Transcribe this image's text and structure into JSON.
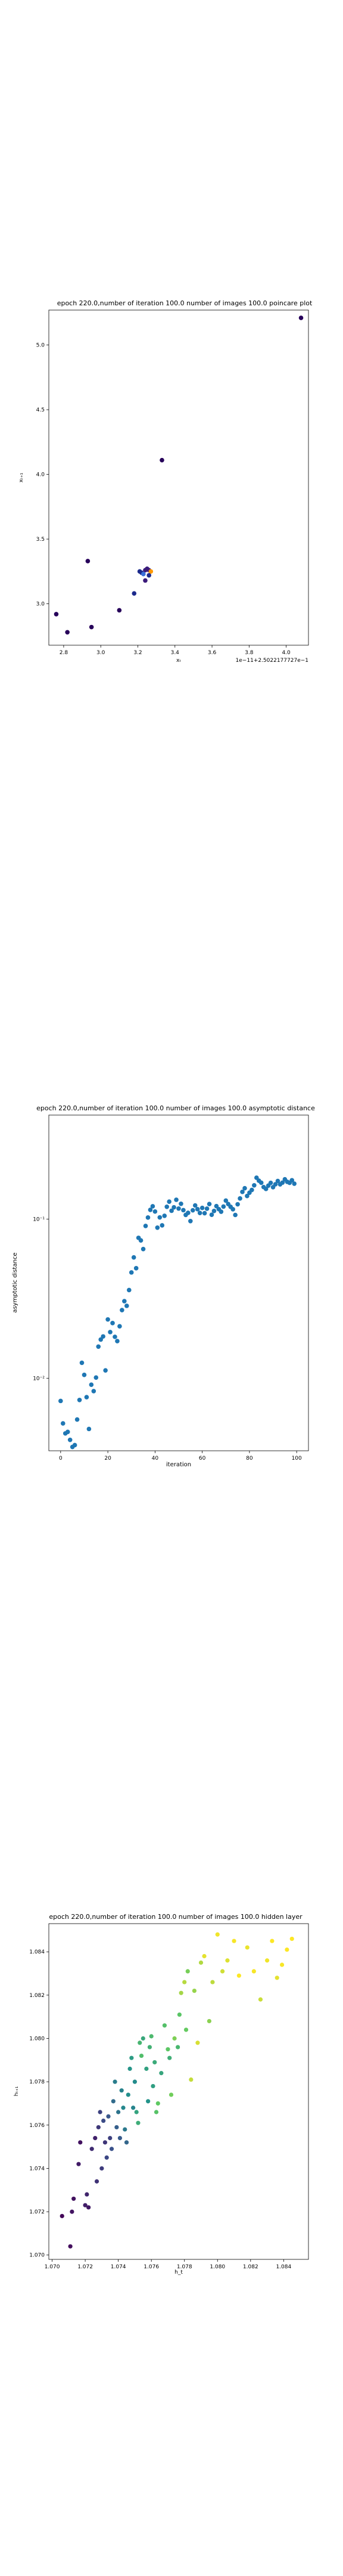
{
  "chart_data": [
    {
      "type": "scatter",
      "title": "epoch 220.0,number of iteration 100.0 number of images 100.0 poincare plot",
      "xlabel": "xₜ",
      "ylabel": "xₜ₊₁",
      "offset_label": "1e−11+2.5022177727e−1",
      "xlim": [
        2.72,
        4.12
      ],
      "ylim": [
        2.68,
        5.27
      ],
      "xticks": [
        2.8,
        3.0,
        3.2,
        3.4,
        3.6,
        3.8,
        4.0
      ],
      "xtick_labels": [
        "2.8",
        "3.0",
        "3.2",
        "3.4",
        "3.6",
        "3.8",
        "4.0"
      ],
      "yticks": [
        3.0,
        3.5,
        4.0,
        4.5,
        5.0
      ],
      "ytick_labels": [
        "3.0",
        "3.5",
        "4.0",
        "4.5",
        "5.0"
      ],
      "grid": false,
      "points": [
        {
          "x": 4.08,
          "y": 5.21
        },
        {
          "x": 3.33,
          "y": 4.11
        },
        {
          "x": 2.93,
          "y": 3.33
        },
        {
          "x": 2.76,
          "y": 2.92
        },
        {
          "x": 2.82,
          "y": 2.78
        },
        {
          "x": 2.95,
          "y": 2.82
        },
        {
          "x": 3.1,
          "y": 2.95
        },
        {
          "x": 3.18,
          "y": 3.08
        },
        {
          "x": 3.24,
          "y": 3.18
        },
        {
          "x": 3.22,
          "y": 3.24
        },
        {
          "x": 3.24,
          "y": 3.26
        },
        {
          "x": 3.25,
          "y": 3.27
        },
        {
          "x": 3.26,
          "y": 3.26
        },
        {
          "x": 3.27,
          "y": 3.25
        },
        {
          "x": 3.23,
          "y": 3.23
        },
        {
          "x": 3.26,
          "y": 3.22
        },
        {
          "x": 3.25,
          "y": 3.27
        },
        {
          "x": 3.21,
          "y": 3.25
        }
      ],
      "colors": [
        "#27005a",
        "#3b1a7a",
        "#1c2a8c",
        "#ff9900",
        "#3a6fd8"
      ]
    },
    {
      "type": "scatter",
      "title": "epoch 220.0,number of iteration 100.0  number of images 100.0 asymptotic distance",
      "xlabel": "iteration",
      "ylabel": "asymptotic distance",
      "yscale": "log",
      "xlim": [
        -5,
        105
      ],
      "ylim": [
        0.0035,
        0.45
      ],
      "xticks": [
        0,
        20,
        40,
        60,
        80,
        100
      ],
      "xtick_labels": [
        "0",
        "20",
        "40",
        "60",
        "80",
        "100"
      ],
      "yticks": [
        0.01,
        0.1
      ],
      "ytick_labels": [
        "10⁻²",
        "10⁻¹"
      ],
      "grid": false,
      "color": "#1f77b4",
      "x": [
        0,
        1,
        2,
        3,
        4,
        5,
        6,
        7,
        8,
        9,
        10,
        11,
        12,
        13,
        14,
        15,
        16,
        17,
        18,
        19,
        20,
        21,
        22,
        23,
        24,
        25,
        26,
        27,
        28,
        29,
        30,
        31,
        32,
        33,
        34,
        35,
        36,
        37,
        38,
        39,
        40,
        41,
        42,
        43,
        44,
        45,
        46,
        47,
        48,
        49,
        50,
        51,
        52,
        53,
        54,
        55,
        56,
        57,
        58,
        59,
        60,
        61,
        62,
        63,
        64,
        65,
        66,
        67,
        68,
        69,
        70,
        71,
        72,
        73,
        74,
        75,
        76,
        77,
        78,
        79,
        80,
        81,
        82,
        83,
        84,
        85,
        86,
        87,
        88,
        89,
        90,
        91,
        92,
        93,
        94,
        95,
        96,
        97,
        98,
        99
      ],
      "y": [
        0.0072,
        0.0052,
        0.0045,
        0.0046,
        0.0041,
        0.0037,
        0.0038,
        0.0055,
        0.0073,
        0.0125,
        0.0105,
        0.0076,
        0.0048,
        0.0091,
        0.0083,
        0.0101,
        0.0158,
        0.0175,
        0.0183,
        0.0112,
        0.0234,
        0.0195,
        0.0222,
        0.0182,
        0.0171,
        0.0212,
        0.0268,
        0.0305,
        0.0285,
        0.0358,
        0.0462,
        0.0574,
        0.0491,
        0.0762,
        0.0734,
        0.0648,
        0.0905,
        0.1022,
        0.1142,
        0.1203,
        0.1115,
        0.0883,
        0.1024,
        0.0913,
        0.1048,
        0.1194,
        0.1286,
        0.1128,
        0.1185,
        0.1322,
        0.1164,
        0.1247,
        0.1138,
        0.1062,
        0.1094,
        0.0971,
        0.1135,
        0.1218,
        0.1153,
        0.1092,
        0.1175,
        0.1088,
        0.1162,
        0.1243,
        0.1064,
        0.1124,
        0.1206,
        0.1154,
        0.1112,
        0.1198,
        0.1306,
        0.1243,
        0.1194,
        0.1152,
        0.1061,
        0.1238,
        0.1347,
        0.1481,
        0.1562,
        0.1396,
        0.1464,
        0.1524,
        0.1629,
        0.1818,
        0.1742,
        0.1692,
        0.1588,
        0.1546,
        0.1622,
        0.1688,
        0.1586,
        0.1653,
        0.1734,
        0.1652,
        0.1694,
        0.1778,
        0.1714,
        0.1689,
        0.1752,
        0.1668
      ]
    },
    {
      "type": "scatter",
      "title": "epoch 220.0,number of iteration 100.0  number of images 100.0 hidden layer",
      "xlabel": "h_t",
      "ylabel": "hₜ₊₁",
      "xlim": [
        1.0698,
        1.0855
      ],
      "ylim": [
        1.0698,
        1.0853
      ],
      "xticks": [
        1.07,
        1.072,
        1.074,
        1.076,
        1.078,
        1.08,
        1.082,
        1.084
      ],
      "xtick_labels": [
        "1.070",
        "1.072",
        "1.074",
        "1.076",
        "1.078",
        "1.080",
        "1.082",
        "1.084"
      ],
      "yticks": [
        1.07,
        1.072,
        1.074,
        1.076,
        1.078,
        1.08,
        1.082,
        1.084
      ],
      "ytick_labels": [
        "1.070",
        "1.072",
        "1.074",
        "1.076",
        "1.078",
        "1.080",
        "1.082",
        "1.084"
      ],
      "grid": false,
      "colormap": "viridis",
      "points": [
        {
          "x": 1.0706,
          "y": 1.0718,
          "c": 0.02
        },
        {
          "x": 1.0711,
          "y": 1.0704,
          "c": 0.04
        },
        {
          "x": 1.0713,
          "y": 1.0726,
          "c": 0.05
        },
        {
          "x": 1.0712,
          "y": 1.072,
          "c": 0.06
        },
        {
          "x": 1.0716,
          "y": 1.0742,
          "c": 0.08
        },
        {
          "x": 1.0717,
          "y": 1.0752,
          "c": 0.05
        },
        {
          "x": 1.072,
          "y": 1.0723,
          "c": 0.09
        },
        {
          "x": 1.0721,
          "y": 1.0728,
          "c": 0.11
        },
        {
          "x": 1.0722,
          "y": 1.0722,
          "c": 0.07
        },
        {
          "x": 1.0724,
          "y": 1.0749,
          "c": 0.13
        },
        {
          "x": 1.0726,
          "y": 1.0754,
          "c": 0.1
        },
        {
          "x": 1.0727,
          "y": 1.0734,
          "c": 0.15
        },
        {
          "x": 1.0728,
          "y": 1.0759,
          "c": 0.17
        },
        {
          "x": 1.0729,
          "y": 1.0766,
          "c": 0.2
        },
        {
          "x": 1.073,
          "y": 1.074,
          "c": 0.18
        },
        {
          "x": 1.0731,
          "y": 1.0762,
          "c": 0.23
        },
        {
          "x": 1.0732,
          "y": 1.0752,
          "c": 0.16
        },
        {
          "x": 1.0733,
          "y": 1.0745,
          "c": 0.22
        },
        {
          "x": 1.0734,
          "y": 1.0764,
          "c": 0.27
        },
        {
          "x": 1.0735,
          "y": 1.0754,
          "c": 0.19
        },
        {
          "x": 1.0736,
          "y": 1.0749,
          "c": 0.25
        },
        {
          "x": 1.0737,
          "y": 1.0771,
          "c": 0.35
        },
        {
          "x": 1.0738,
          "y": 1.078,
          "c": 0.42
        },
        {
          "x": 1.0739,
          "y": 1.0759,
          "c": 0.3
        },
        {
          "x": 1.074,
          "y": 1.0766,
          "c": 0.38
        },
        {
          "x": 1.0741,
          "y": 1.0754,
          "c": 0.28
        },
        {
          "x": 1.0742,
          "y": 1.0776,
          "c": 0.44
        },
        {
          "x": 1.0743,
          "y": 1.0768,
          "c": 0.46
        },
        {
          "x": 1.0744,
          "y": 1.0758,
          "c": 0.4
        },
        {
          "x": 1.0745,
          "y": 1.0752,
          "c": 0.33
        },
        {
          "x": 1.0746,
          "y": 1.0774,
          "c": 0.49
        },
        {
          "x": 1.0747,
          "y": 1.0786,
          "c": 0.52
        },
        {
          "x": 1.0748,
          "y": 1.0791,
          "c": 0.55
        },
        {
          "x": 1.0749,
          "y": 1.0768,
          "c": 0.45
        },
        {
          "x": 1.075,
          "y": 1.078,
          "c": 0.48
        },
        {
          "x": 1.0751,
          "y": 1.0766,
          "c": 0.58
        },
        {
          "x": 1.0752,
          "y": 1.0761,
          "c": 0.62
        },
        {
          "x": 1.0753,
          "y": 1.0798,
          "c": 0.66
        },
        {
          "x": 1.0754,
          "y": 1.0792,
          "c": 0.7
        },
        {
          "x": 1.0755,
          "y": 1.08,
          "c": 0.6
        },
        {
          "x": 1.0757,
          "y": 1.0786,
          "c": 0.57
        },
        {
          "x": 1.0758,
          "y": 1.0771,
          "c": 0.51
        },
        {
          "x": 1.0759,
          "y": 1.0796,
          "c": 0.64
        },
        {
          "x": 1.076,
          "y": 1.0801,
          "c": 0.68
        },
        {
          "x": 1.0761,
          "y": 1.0778,
          "c": 0.56
        },
        {
          "x": 1.0762,
          "y": 1.0789,
          "c": 0.61
        },
        {
          "x": 1.0763,
          "y": 1.0766,
          "c": 0.72
        },
        {
          "x": 1.0764,
          "y": 1.077,
          "c": 0.75
        },
        {
          "x": 1.0766,
          "y": 1.0784,
          "c": 0.59
        },
        {
          "x": 1.0768,
          "y": 1.0806,
          "c": 0.71
        },
        {
          "x": 1.077,
          "y": 1.0795,
          "c": 0.74
        },
        {
          "x": 1.0771,
          "y": 1.0791,
          "c": 0.63
        },
        {
          "x": 1.0772,
          "y": 1.0774,
          "c": 0.78
        },
        {
          "x": 1.0774,
          "y": 1.08,
          "c": 0.8
        },
        {
          "x": 1.0776,
          "y": 1.0796,
          "c": 0.67
        },
        {
          "x": 1.0777,
          "y": 1.0811,
          "c": 0.73
        },
        {
          "x": 1.0778,
          "y": 1.0821,
          "c": 0.86
        },
        {
          "x": 1.078,
          "y": 1.0826,
          "c": 0.89
        },
        {
          "x": 1.0781,
          "y": 1.0804,
          "c": 0.76
        },
        {
          "x": 1.0782,
          "y": 1.0831,
          "c": 0.79
        },
        {
          "x": 1.0784,
          "y": 1.0781,
          "c": 0.91
        },
        {
          "x": 1.0786,
          "y": 1.0822,
          "c": 0.84
        },
        {
          "x": 1.0788,
          "y": 1.0798,
          "c": 0.94
        },
        {
          "x": 1.079,
          "y": 1.0835,
          "c": 0.88
        },
        {
          "x": 1.0792,
          "y": 1.0838,
          "c": 0.96
        },
        {
          "x": 1.0795,
          "y": 1.0808,
          "c": 0.82
        },
        {
          "x": 1.0797,
          "y": 1.0826,
          "c": 0.9
        },
        {
          "x": 1.08,
          "y": 1.0848,
          "c": 0.98
        },
        {
          "x": 1.0803,
          "y": 1.0831,
          "c": 0.93
        },
        {
          "x": 1.0806,
          "y": 1.0836,
          "c": 0.95
        },
        {
          "x": 1.081,
          "y": 1.0845,
          "c": 0.99
        },
        {
          "x": 1.0813,
          "y": 1.0829,
          "c": 1.0
        },
        {
          "x": 1.0818,
          "y": 1.0842,
          "c": 0.97
        },
        {
          "x": 1.0822,
          "y": 1.0831,
          "c": 0.99
        },
        {
          "x": 1.0826,
          "y": 1.0818,
          "c": 0.92
        },
        {
          "x": 1.083,
          "y": 1.0836,
          "c": 0.98
        },
        {
          "x": 1.0833,
          "y": 1.0845,
          "c": 1.0
        },
        {
          "x": 1.0836,
          "y": 1.0828,
          "c": 0.96
        },
        {
          "x": 1.0839,
          "y": 1.0834,
          "c": 0.99
        },
        {
          "x": 1.0842,
          "y": 1.0841,
          "c": 1.0
        },
        {
          "x": 1.0845,
          "y": 1.0846,
          "c": 1.0
        }
      ]
    }
  ]
}
